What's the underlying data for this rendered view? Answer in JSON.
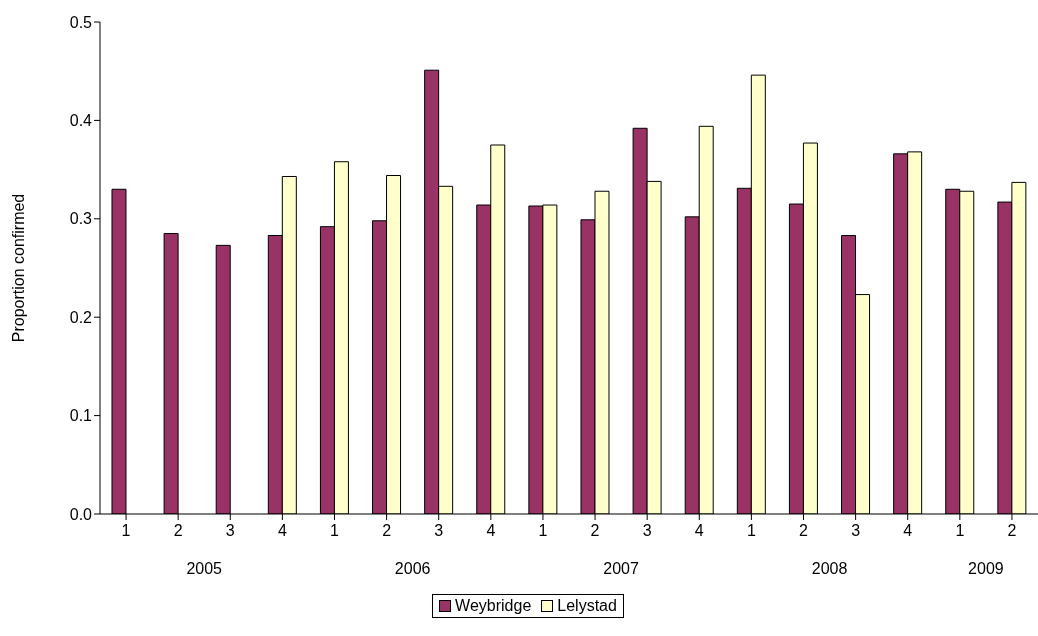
{
  "chart_data": {
    "type": "bar",
    "ylabel": "Proportion confirmed",
    "categories": [
      "1",
      "2",
      "3",
      "4",
      "1",
      "2",
      "3",
      "4",
      "1",
      "2",
      "3",
      "4",
      "1",
      "2",
      "3",
      "4",
      "1",
      "2"
    ],
    "annotations": [
      "2005",
      "2006",
      "2007",
      "2008",
      "2009"
    ],
    "series": [
      {
        "name": "Weybridge",
        "color": "#993366",
        "values": [
          0.33,
          0.285,
          0.273,
          0.283,
          0.292,
          0.298,
          0.451,
          0.314,
          0.313,
          0.299,
          0.392,
          0.302,
          0.331,
          0.315,
          0.283,
          0.366,
          0.33,
          0.317
        ]
      },
      {
        "name": "Lelystad",
        "color": "#ffffcc",
        "values": [
          null,
          null,
          null,
          0.343,
          0.358,
          0.344,
          0.333,
          0.375,
          0.314,
          0.328,
          0.338,
          0.394,
          0.446,
          0.377,
          0.223,
          0.368,
          0.328,
          0.337
        ]
      }
    ],
    "ylim": [
      0,
      0.5
    ],
    "yticks": [
      {
        "value": 0,
        "label": "0.0"
      },
      0.1,
      0.2,
      0.3,
      0.4,
      0.5
    ],
    "grid": false,
    "legend": "bottom"
  }
}
